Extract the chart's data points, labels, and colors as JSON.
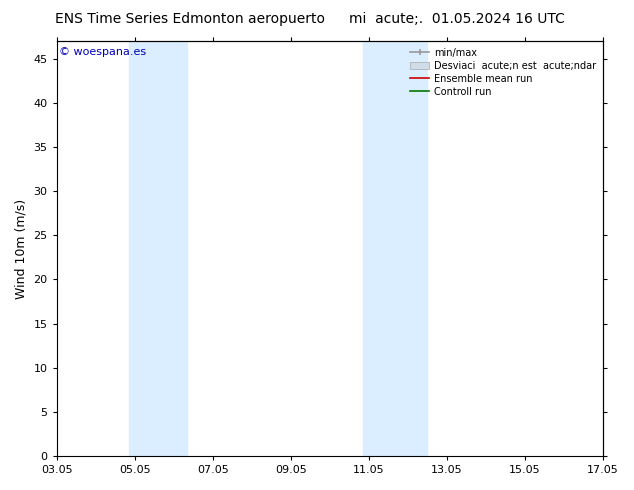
{
  "title_left": "ENS Time Series Edmonton aeropuerto",
  "title_right": "mi  acute;.  01.05.2024 16 UTC",
  "ylabel": "Wind 10m (m/s)",
  "watermark": "© woespana.es",
  "ylim": [
    0,
    47
  ],
  "yticks": [
    0,
    5,
    10,
    15,
    20,
    25,
    30,
    35,
    40,
    45
  ],
  "xtick_labels": [
    "03.05",
    "05.05",
    "07.05",
    "09.05",
    "11.05",
    "13.05",
    "15.05",
    "17.05"
  ],
  "xtick_positions": [
    0,
    2,
    4,
    6,
    8,
    10,
    12,
    14
  ],
  "shaded_bands": [
    {
      "x_start": 1.85,
      "x_end": 2.6,
      "color": "#daeeff"
    },
    {
      "x_start": 2.6,
      "x_end": 3.35,
      "color": "#daeeff"
    },
    {
      "x_start": 7.85,
      "x_end": 8.65,
      "color": "#daeeff"
    },
    {
      "x_start": 8.65,
      "x_end": 9.5,
      "color": "#daeeff"
    }
  ],
  "legend_labels": [
    "min/max",
    "Desviaci  acute;n est  acute;ndar",
    "Ensemble mean run",
    "Controll run"
  ],
  "background_color": "#ffffff",
  "plot_bg_color": "#ffffff",
  "title_fontsize": 10,
  "axis_fontsize": 9,
  "tick_fontsize": 8,
  "watermark_color": "#0000bb",
  "watermark_fontsize": 8
}
